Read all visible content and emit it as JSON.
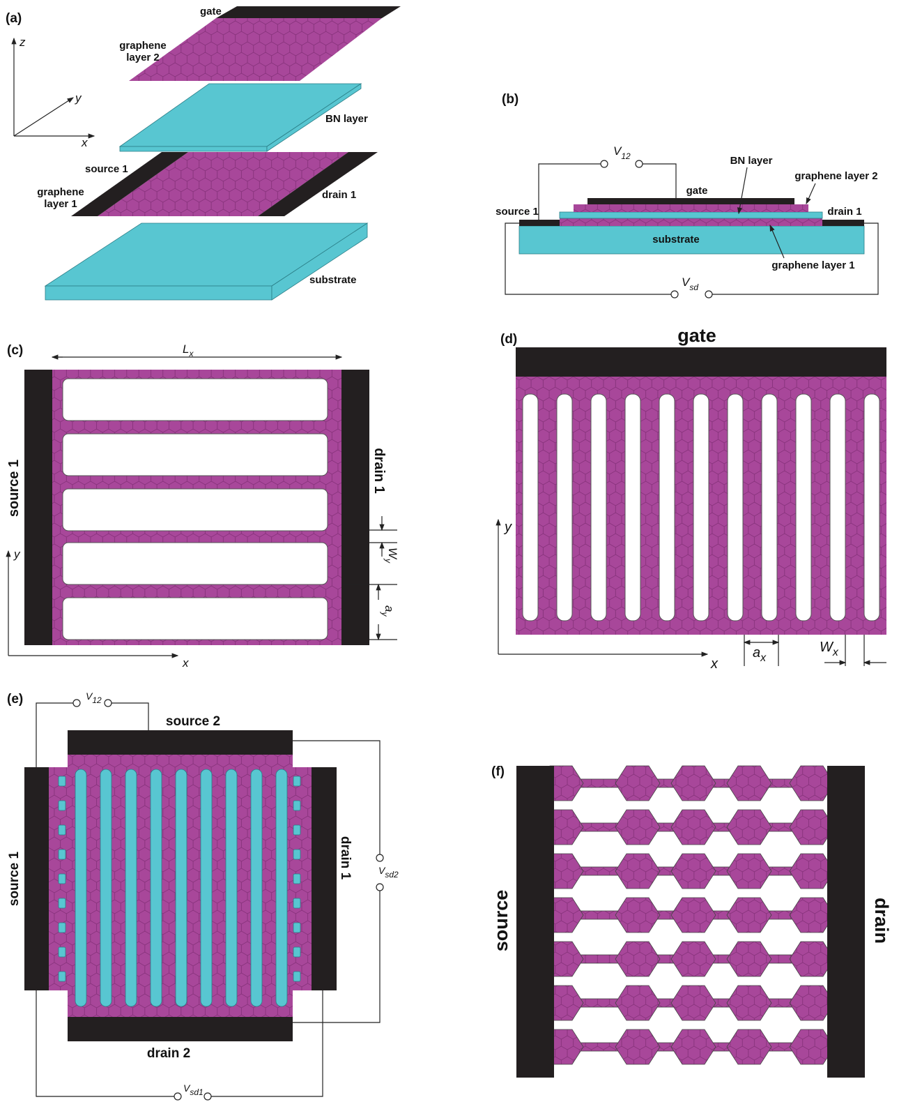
{
  "panels": {
    "a": {
      "label": "(a)",
      "gate": "gate",
      "graphene_layer_2": [
        "graphene",
        "layer 2"
      ],
      "bn_layer": "BN layer",
      "source": "source 1",
      "graphene_layer_1": [
        "graphene",
        "layer 1"
      ],
      "drain": "drain 1",
      "substrate": "substrate",
      "axes": {
        "x": "x",
        "y": "y",
        "z": "z"
      }
    },
    "b": {
      "label": "(b)",
      "voltage_12": {
        "symbol": "V",
        "subscript": "12"
      },
      "bn_layer": "BN layer",
      "graphene_layer_2": "graphene layer 2",
      "gate": "gate",
      "source": "source 1",
      "drain": "drain 1",
      "substrate": "substrate",
      "graphene_layer_1": "graphene layer 1",
      "voltage_sd": {
        "symbol": "V",
        "subscript": "sd"
      }
    },
    "c": {
      "label": "(c)",
      "length": {
        "symbol": "L",
        "subscript": "x"
      },
      "source": "source 1",
      "drain": "drain 1",
      "width": {
        "symbol": "W",
        "subscript": "y"
      },
      "period": {
        "symbol": "a",
        "subscript": "y"
      },
      "axes": {
        "x": "x",
        "y": "y"
      }
    },
    "d": {
      "label": "(d)",
      "gate": "gate",
      "period": {
        "symbol": "a",
        "subscript": "x"
      },
      "width": {
        "symbol": "W",
        "subscript": "x"
      },
      "axes": {
        "x": "x",
        "y": "y"
      }
    },
    "e": {
      "label": "(e)",
      "voltage_12": {
        "symbol": "V",
        "subscript": "12"
      },
      "source_2": "source 2",
      "source_1": "source 1",
      "drain_1": "drain 1",
      "voltage_sd2": {
        "symbol": "V",
        "subscript": "sd2"
      },
      "drain_2": "drain 2",
      "voltage_sd1": {
        "symbol": "V",
        "subscript": "sd1"
      }
    },
    "f": {
      "label": "(f)",
      "source": "source",
      "drain": "drain"
    }
  }
}
